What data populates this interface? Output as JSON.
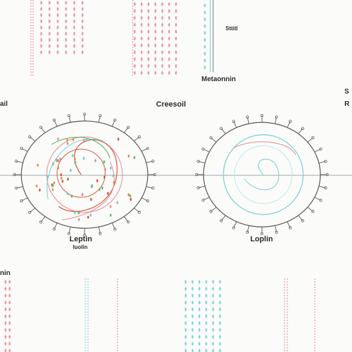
{
  "labels": {
    "top_small": "Sttitl",
    "top_mid": "Metaonnin",
    "left_edge": "ail",
    "center": "Creesoil",
    "right_edge_top": "S",
    "right_edge_bottom": "R",
    "left_circle_title": "Leptin",
    "left_circle_sub": "Iuolin",
    "right_circle_title": "Loplin",
    "bottom_left": "nin"
  },
  "colors": {
    "pink": "#e48a8f",
    "teal": "#6fcfcf",
    "axis": "#6a6a6a",
    "red": "#d9553f",
    "green": "#5dbb63",
    "orange": "#e6913a"
  }
}
